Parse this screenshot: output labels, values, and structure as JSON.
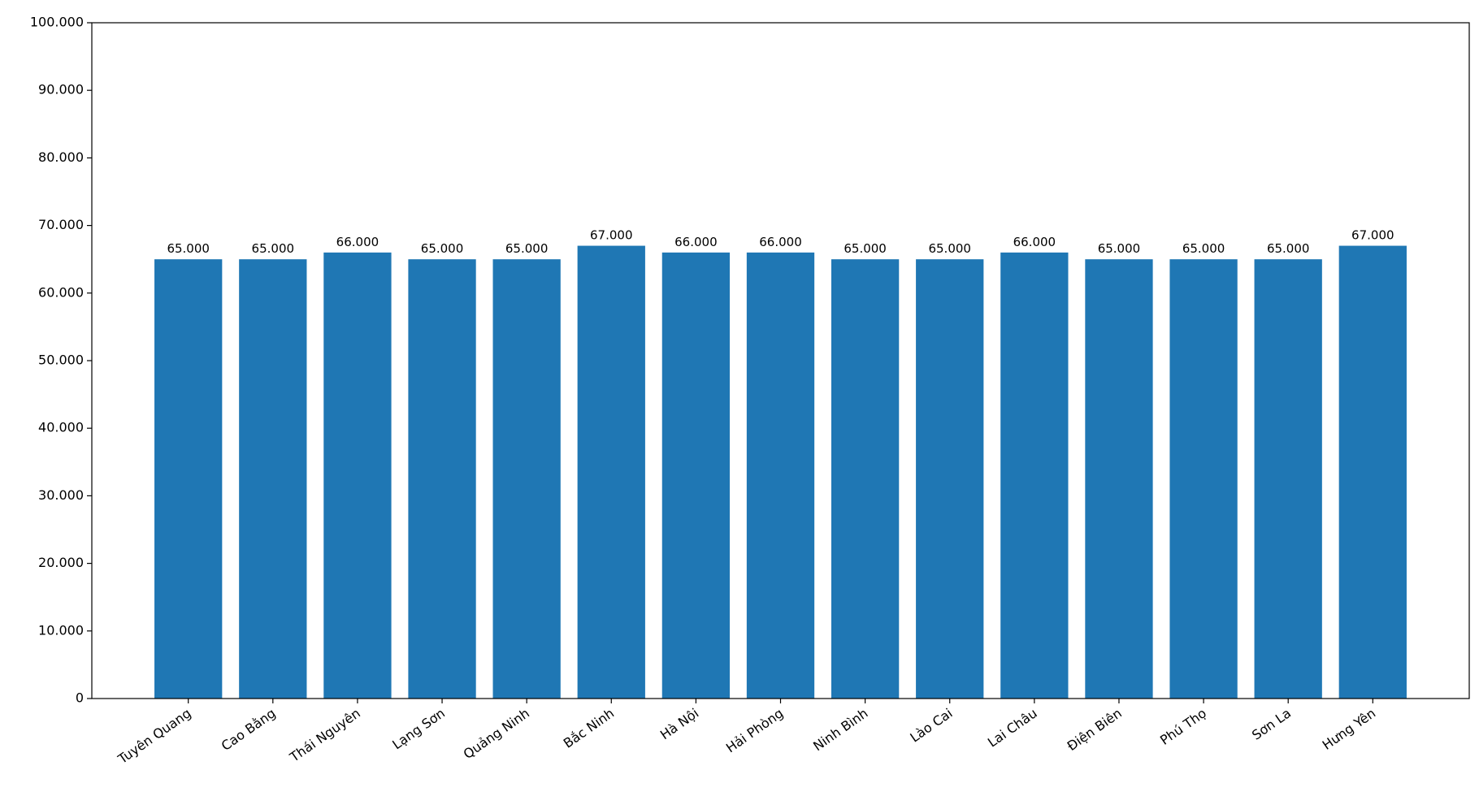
{
  "chart_data": {
    "type": "bar",
    "categories": [
      "Tuyên Quang",
      "Cao Bằng",
      "Thái Nguyên",
      "Lạng Sơn",
      "Quảng Ninh",
      "Bắc Ninh",
      "Hà Nội",
      "Hải Phòng",
      "Ninh Bình",
      "Lào Cai",
      "Lai Châu",
      "Điện Biên",
      "Phú Thọ",
      "Sơn La",
      "Hưng Yên"
    ],
    "values": [
      65000,
      65000,
      66000,
      65000,
      65000,
      67000,
      66000,
      66000,
      65000,
      65000,
      66000,
      65000,
      65000,
      65000,
      67000
    ],
    "value_labels": [
      "65.000",
      "65.000",
      "66.000",
      "65.000",
      "65.000",
      "67.000",
      "66.000",
      "66.000",
      "65.000",
      "65.000",
      "66.000",
      "65.000",
      "65.000",
      "65.000",
      "67.000"
    ],
    "color": "#1f77b4",
    "ylim": [
      0,
      100000
    ],
    "yticks": [
      0,
      {
        "value": 10000,
        "label": "10.000"
      },
      {
        "value": 20000,
        "label": "20.000"
      },
      {
        "value": 30000,
        "label": "30.000"
      },
      {
        "value": 40000,
        "label": "40.000"
      },
      {
        "value": 50000,
        "label": "50.000"
      },
      {
        "value": 60000,
        "label": "60.000"
      },
      {
        "value": 70000,
        "label": "70.000"
      },
      {
        "value": 80000,
        "label": "80.000"
      },
      {
        "value": 90000,
        "label": "90.000"
      },
      {
        "value": 100000,
        "label": "100.000"
      }
    ],
    "grid": false
  }
}
